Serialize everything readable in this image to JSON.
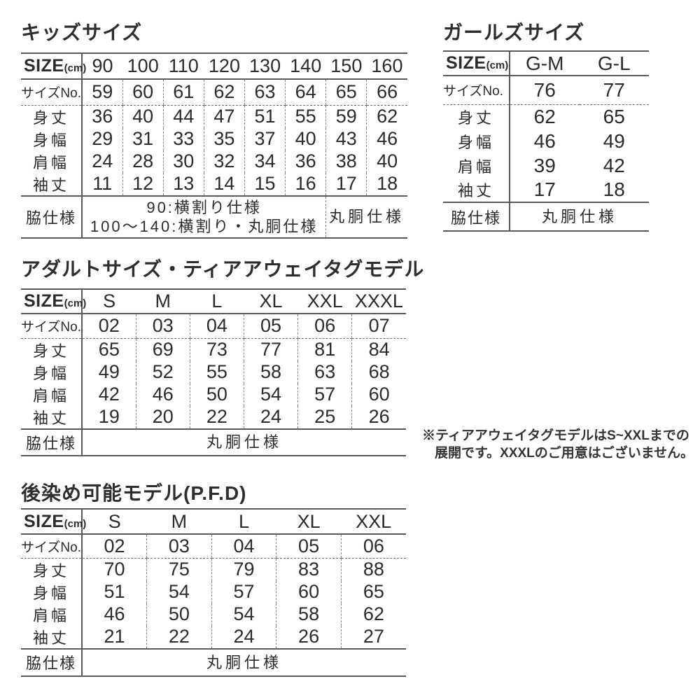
{
  "colors": {
    "text": "#2b2b2b",
    "solid_rule": "#5a5a5a",
    "dashed_rule": "#8a8a8a",
    "background": "#ffffff"
  },
  "tables": [
    {
      "id": "kids",
      "title": "キッズサイズ",
      "size_label": "SIZE",
      "size_unit": "(cm)",
      "columns": [
        "90",
        "100",
        "110",
        "120",
        "130",
        "140",
        "150",
        "160"
      ],
      "rows": [
        {
          "label": "サイズNo.",
          "values": [
            "59",
            "60",
            "61",
            "62",
            "63",
            "64",
            "65",
            "66"
          ]
        },
        {
          "label": "身丈",
          "values": [
            "36",
            "40",
            "44",
            "47",
            "51",
            "55",
            "59",
            "62"
          ]
        },
        {
          "label": "身幅",
          "values": [
            "29",
            "31",
            "33",
            "35",
            "37",
            "40",
            "43",
            "46"
          ]
        },
        {
          "label": "肩幅",
          "values": [
            "24",
            "28",
            "30",
            "32",
            "34",
            "36",
            "38",
            "40"
          ]
        },
        {
          "label": "袖丈",
          "values": [
            "11",
            "12",
            "13",
            "14",
            "15",
            "16",
            "17",
            "18"
          ]
        }
      ],
      "spec_label": "脇仕様",
      "spec_cells": [
        {
          "span": 6,
          "wide": false,
          "lines": [
            "90:横割り仕様",
            "100〜140:横割り・丸胴仕様"
          ]
        },
        {
          "span": 2,
          "wide": true,
          "lines": [
            "丸胴仕様"
          ]
        }
      ]
    },
    {
      "id": "girls",
      "title": "ガールズサイズ",
      "size_label": "SIZE",
      "size_unit": "(cm)",
      "columns": [
        "G-M",
        "G-L"
      ],
      "rows": [
        {
          "label": "サイズNo.",
          "values": [
            "76",
            "77"
          ]
        },
        {
          "label": "身丈",
          "values": [
            "62",
            "65"
          ]
        },
        {
          "label": "身幅",
          "values": [
            "46",
            "49"
          ]
        },
        {
          "label": "肩幅",
          "values": [
            "39",
            "42"
          ]
        },
        {
          "label": "袖丈",
          "values": [
            "17",
            "18"
          ]
        }
      ],
      "spec_label": "脇仕様",
      "spec_cells": [
        {
          "span": 2,
          "wide": true,
          "lines": [
            "丸胴仕様"
          ]
        }
      ]
    },
    {
      "id": "adult",
      "title": "アダルトサイズ・ティアアウェイタグモデル",
      "size_label": "SIZE",
      "size_unit": "(cm)",
      "columns": [
        "S",
        "M",
        "L",
        "XL",
        "XXL",
        "XXXL"
      ],
      "rows": [
        {
          "label": "サイズNo.",
          "values": [
            "02",
            "03",
            "04",
            "05",
            "06",
            "07"
          ]
        },
        {
          "label": "身丈",
          "values": [
            "65",
            "69",
            "73",
            "77",
            "81",
            "84"
          ]
        },
        {
          "label": "身幅",
          "values": [
            "49",
            "52",
            "55",
            "58",
            "63",
            "68"
          ]
        },
        {
          "label": "肩幅",
          "values": [
            "42",
            "46",
            "50",
            "54",
            "57",
            "60"
          ]
        },
        {
          "label": "袖丈",
          "values": [
            "19",
            "20",
            "22",
            "24",
            "25",
            "26"
          ]
        }
      ],
      "spec_label": "脇仕様",
      "spec_cells": [
        {
          "span": 6,
          "wide": true,
          "lines": [
            "丸胴仕様"
          ]
        }
      ]
    },
    {
      "id": "pfd",
      "title": "後染め可能モデル(P.F.D)",
      "size_label": "SIZE",
      "size_unit": "(cm)",
      "columns": [
        "S",
        "M",
        "L",
        "XL",
        "XXL"
      ],
      "rows": [
        {
          "label": "サイズNo.",
          "values": [
            "02",
            "03",
            "04",
            "05",
            "06"
          ]
        },
        {
          "label": "身丈",
          "values": [
            "70",
            "75",
            "79",
            "83",
            "88"
          ]
        },
        {
          "label": "身幅",
          "values": [
            "51",
            "54",
            "57",
            "60",
            "65"
          ]
        },
        {
          "label": "肩幅",
          "values": [
            "46",
            "50",
            "54",
            "58",
            "62"
          ]
        },
        {
          "label": "袖丈",
          "values": [
            "21",
            "22",
            "24",
            "26",
            "27"
          ]
        }
      ],
      "spec_label": "脇仕様",
      "spec_cells": [
        {
          "span": 5,
          "wide": true,
          "lines": [
            "丸胴仕様"
          ]
        }
      ]
    }
  ],
  "note": {
    "lines": [
      "※ティアアウェイタグモデルはS~XXLまでの",
      "展開です。XXXLのご用意はございません。"
    ]
  }
}
